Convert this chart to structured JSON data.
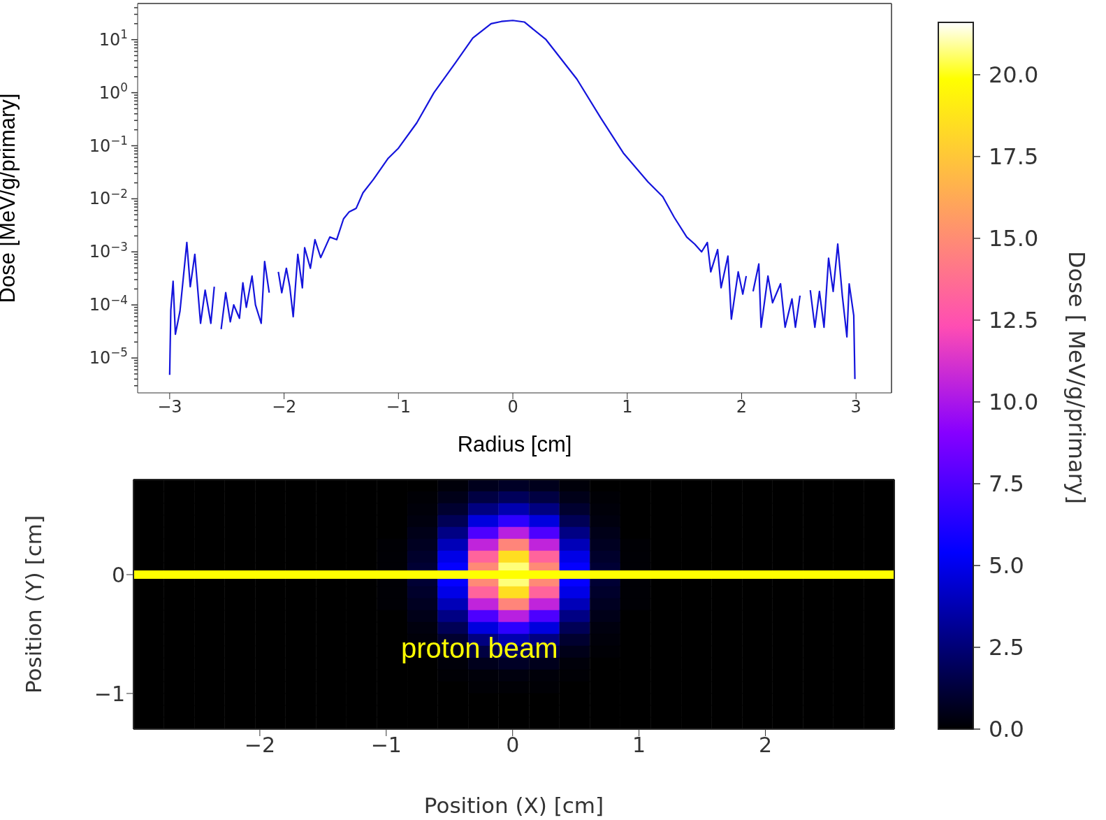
{
  "chart_data": [
    {
      "type": "line",
      "xlabel": "Radius [cm]",
      "ylabel": "Dose [MeV/g/primary]",
      "log": "y",
      "color": "#1414dc",
      "x": [
        -3.0,
        -2.99,
        -2.97,
        -2.95,
        -2.91,
        -2.85,
        -2.82,
        -2.78,
        -2.73,
        -2.69,
        -2.64,
        -2.61,
        -2.58,
        -2.55,
        -2.51,
        -2.47,
        -2.44,
        -2.39,
        -2.36,
        -2.33,
        -2.28,
        -2.25,
        -2.2,
        -2.17,
        -2.13,
        -2.1,
        -2.05,
        -2.02,
        -1.98,
        -1.95,
        -1.92,
        -1.88,
        -1.84,
        -1.82,
        -1.77,
        -1.73,
        -1.68,
        -1.6,
        -1.54,
        -1.48,
        -1.43,
        -1.37,
        -1.31,
        -1.22,
        -1.09,
        -1.0,
        -0.84,
        -0.69,
        -0.5,
        -0.35,
        -0.19,
        -0.1,
        0,
        0.1,
        0.29,
        0.56,
        0.77,
        0.97,
        1.18,
        1.31,
        1.41,
        1.52,
        1.59,
        1.65,
        1.7,
        1.73,
        1.79,
        1.82,
        1.88,
        1.91,
        1.97,
        2.01,
        2.04,
        2.06,
        2.1,
        2.15,
        2.17,
        2.23,
        2.27,
        2.34,
        2.38,
        2.44,
        2.47,
        2.51,
        2.56,
        2.6,
        2.64,
        2.68,
        2.72,
        2.76,
        2.8,
        2.84,
        2.88,
        2.92,
        2.94,
        2.98,
        2.99
      ],
      "values": [
        4.8e-06,
        8e-05,
        0.00028,
        2.8e-05,
        7.6e-05,
        0.0015,
        0.00022,
        0.0009,
        4.5e-05,
        0.00019,
        4.5e-05,
        0.00022,
        null,
        3.5e-05,
        0.00017,
        4.8e-05,
        0.0001,
        5.6e-05,
        0.00026,
        9e-05,
        0.00035,
        0.0001,
        4.5e-05,
        0.00066,
        0.00017,
        null,
        0.00042,
        0.00017,
        0.00049,
        0.00022,
        6e-05,
        0.0009,
        0.00021,
        0.0012,
        0.00049,
        0.0017,
        0.00078,
        0.0019,
        0.0017,
        0.0042,
        0.0057,
        0.0066,
        0.013,
        0.023,
        0.058,
        0.09,
        0.27,
        1.0,
        3.7,
        10.7,
        20,
        22,
        23,
        21.5,
        10,
        1.8,
        0.33,
        0.071,
        0.021,
        0.011,
        0.0045,
        0.0019,
        0.0014,
        0.001,
        0.0015,
        0.00042,
        0.0011,
        0.00021,
        0.00083,
        5.4e-05,
        0.00042,
        0.00016,
        0.00035,
        null,
        0.00018,
        0.00059,
        3.8e-05,
        0.00035,
        0.00011,
        0.00025,
        3.8e-05,
        0.00013,
        3.8e-05,
        0.00015,
        null,
        0.00019,
        3.8e-05,
        0.00018,
        3.8e-05,
        0.00076,
        0.00018,
        0.0014,
        0.00015,
        2.5e-05,
        0.00025,
        6.3e-05,
        4e-06
      ],
      "xlim": [
        -3.28,
        3.31
      ],
      "xticks": [
        -3,
        -2,
        -1,
        0,
        1,
        2,
        3
      ],
      "ylim": [
        2.2e-06,
        48
      ],
      "yticks": [
        {
          "value": 10,
          "label": "10$^{1}$"
        },
        {
          "value": 1,
          "label": "10$^{0}$"
        },
        {
          "value": 0.1,
          "label": "10$^{−1}$"
        },
        {
          "value": 0.01,
          "label": "10$^{−2}$"
        },
        {
          "value": 0.001,
          "label": "10$^{−3}$"
        },
        {
          "value": 0.0001,
          "label": "10$^{−4}$"
        },
        {
          "value": 1e-05,
          "label": "10$^{−5}$"
        },
        {
          "value": 3e-06,
          "label": null
        },
        {
          "value": 4e-06,
          "label": null
        },
        {
          "value": 5e-06,
          "label": null
        },
        {
          "value": 6e-06,
          "label": null
        },
        {
          "value": 7e-06,
          "label": null
        },
        {
          "value": 8e-06,
          "label": null
        },
        {
          "value": 9e-06,
          "label": null
        },
        {
          "value": 2e-05,
          "label": null
        },
        {
          "value": 3e-05,
          "label": null
        },
        {
          "value": 4e-05,
          "label": null
        },
        {
          "value": 5e-05,
          "label": null
        },
        {
          "value": 6e-05,
          "label": null
        },
        {
          "value": 7e-05,
          "label": null
        },
        {
          "value": 8e-05,
          "label": null
        },
        {
          "value": 9e-05,
          "label": null
        },
        {
          "value": 0.0002,
          "label": null
        },
        {
          "value": 0.0003,
          "label": null
        },
        {
          "value": 0.0004,
          "label": null
        },
        {
          "value": 0.0005,
          "label": null
        },
        {
          "value": 0.0006,
          "label": null
        },
        {
          "value": 0.0007,
          "label": null
        },
        {
          "value": 0.0008,
          "label": null
        },
        {
          "value": 0.0009,
          "label": null
        },
        {
          "value": 0.002,
          "label": null
        },
        {
          "value": 0.003,
          "label": null
        },
        {
          "value": 0.004,
          "label": null
        },
        {
          "value": 0.005,
          "label": null
        },
        {
          "value": 0.006,
          "label": null
        },
        {
          "value": 0.007,
          "label": null
        },
        {
          "value": 0.008,
          "label": null
        },
        {
          "value": 0.009,
          "label": null
        },
        {
          "value": 0.02,
          "label": null
        },
        {
          "value": 0.03,
          "label": null
        },
        {
          "value": 0.04,
          "label": null
        },
        {
          "value": 0.05,
          "label": null
        },
        {
          "value": 0.06,
          "label": null
        },
        {
          "value": 0.07,
          "label": null
        },
        {
          "value": 0.08,
          "label": null
        },
        {
          "value": 0.09,
          "label": null
        },
        {
          "value": 0.2,
          "label": null
        },
        {
          "value": 0.3,
          "label": null
        },
        {
          "value": 0.4,
          "label": null
        },
        {
          "value": 0.5,
          "label": null
        },
        {
          "value": 0.6,
          "label": null
        },
        {
          "value": 0.7,
          "label": null
        },
        {
          "value": 0.8,
          "label": null
        },
        {
          "value": 0.9,
          "label": null
        },
        {
          "value": 2,
          "label": null
        },
        {
          "value": 3,
          "label": null
        },
        {
          "value": 4,
          "label": null
        },
        {
          "value": 5,
          "label": null
        },
        {
          "value": 6,
          "label": null
        },
        {
          "value": 7,
          "label": null
        },
        {
          "value": 8,
          "label": null
        },
        {
          "value": 9,
          "label": null
        },
        {
          "value": 20,
          "label": null
        },
        {
          "value": 30,
          "label": null
        },
        {
          "value": 40,
          "label": null
        }
      ]
    },
    {
      "type": "heatmap",
      "xlabel": "Position (X) [cm]",
      "ylabel": "Position (Y) [cm]",
      "clabel": "Dose [ MeV/g/primary]",
      "xlim": [
        -3.0,
        3.02
      ],
      "xticks": [
        -2,
        -1,
        0,
        1,
        2
      ],
      "ylim": [
        -1.3,
        0.8
      ],
      "yticks": [
        -1,
        0
      ],
      "clim": [
        0,
        21.6
      ],
      "cticks": [
        {
          "value": 0,
          "label": "0.0"
        },
        {
          "value": 2.5,
          "label": "2.5"
        },
        {
          "value": 5,
          "label": "5.0"
        },
        {
          "value": 7.5,
          "label": "7.5"
        },
        {
          "value": 10,
          "label": "10.0"
        },
        {
          "value": 12.5,
          "label": "12.5"
        },
        {
          "value": 15,
          "label": "15.0"
        },
        {
          "value": 17.5,
          "label": "17.5"
        },
        {
          "value": 20,
          "label": "20.0"
        }
      ],
      "ref_lines": [
        {
          "axis": "y",
          "value": 0,
          "color": "#ffff00"
        }
      ],
      "annotations": [
        "proton beam"
      ],
      "cells": [
        [
          0,
          0,
          0,
          0,
          0,
          0,
          0,
          0,
          0,
          0,
          0.2,
          0.6,
          0.8,
          0.6,
          0.2,
          0,
          0,
          0,
          0,
          0,
          0,
          0,
          0,
          0,
          0
        ],
        [
          0,
          0,
          0,
          0,
          0,
          0,
          0,
          0,
          0,
          0.1,
          0.5,
          1.4,
          1.9,
          1.4,
          0.5,
          0.1,
          0,
          0,
          0,
          0,
          0,
          0,
          0,
          0,
          0
        ],
        [
          0,
          0,
          0,
          0,
          0,
          0,
          0,
          0,
          0,
          0.2,
          1.0,
          2.7,
          3.7,
          2.7,
          1.0,
          0.2,
          0,
          0,
          0,
          0,
          0,
          0,
          0,
          0,
          0
        ],
        [
          0,
          0,
          0,
          0,
          0,
          0,
          0,
          0,
          0,
          0.3,
          1.8,
          4.7,
          6.6,
          4.7,
          1.8,
          0.3,
          0,
          0,
          0,
          0,
          0,
          0,
          0,
          0,
          0
        ],
        [
          0,
          0,
          0,
          0,
          0,
          0,
          0,
          0,
          0,
          0.5,
          2.8,
          7.5,
          10.4,
          7.5,
          2.8,
          0.5,
          0,
          0,
          0,
          0,
          0,
          0,
          0,
          0,
          0
        ],
        [
          0,
          0,
          0,
          0,
          0,
          0,
          0,
          0,
          0.1,
          0.7,
          3.9,
          10.6,
          14.7,
          10.6,
          3.9,
          0.7,
          0.1,
          0,
          0,
          0,
          0,
          0,
          0,
          0,
          0
        ],
        [
          0,
          0,
          0,
          0,
          0,
          0,
          0,
          0,
          0.1,
          0.9,
          4.9,
          13.3,
          18.5,
          13.3,
          4.9,
          0.9,
          0.1,
          0,
          0,
          0,
          0,
          0,
          0,
          0,
          0
        ],
        [
          0,
          0,
          0,
          0,
          0,
          0,
          0,
          0,
          0.1,
          1.1,
          5.5,
          14.9,
          20.7,
          14.9,
          5.5,
          1.1,
          0.1,
          0,
          0,
          0,
          0,
          0,
          0,
          0,
          0
        ],
        [
          0,
          0,
          0,
          0,
          0,
          0,
          0,
          0,
          0.1,
          1.1,
          5.5,
          14.9,
          20.7,
          14.9,
          5.5,
          1.1,
          0.1,
          0,
          0,
          0,
          0,
          0,
          0,
          0,
          0
        ],
        [
          0,
          0,
          0,
          0,
          0,
          0,
          0,
          0,
          0.1,
          0.9,
          4.9,
          13.3,
          18.5,
          13.3,
          4.9,
          0.9,
          0.1,
          0,
          0,
          0,
          0,
          0,
          0,
          0,
          0
        ],
        [
          0,
          0,
          0,
          0,
          0,
          0,
          0,
          0,
          0.1,
          0.7,
          3.9,
          10.6,
          14.7,
          10.6,
          3.9,
          0.7,
          0.1,
          0,
          0,
          0,
          0,
          0,
          0,
          0,
          0
        ],
        [
          0,
          0,
          0,
          0,
          0,
          0,
          0,
          0,
          0,
          0.5,
          2.8,
          7.5,
          10.4,
          7.5,
          2.8,
          0.5,
          0,
          0,
          0,
          0,
          0,
          0,
          0,
          0,
          0
        ],
        [
          0,
          0,
          0,
          0,
          0,
          0,
          0,
          0,
          0,
          0.3,
          1.8,
          4.7,
          6.6,
          4.7,
          1.8,
          0.3,
          0,
          0,
          0,
          0,
          0,
          0,
          0,
          0,
          0
        ],
        [
          0,
          0,
          0,
          0,
          0,
          0,
          0,
          0,
          0,
          0.2,
          1.0,
          2.7,
          3.7,
          2.7,
          1.0,
          0.2,
          0,
          0,
          0,
          0,
          0,
          0,
          0,
          0,
          0
        ],
        [
          0,
          0,
          0,
          0,
          0,
          0,
          0,
          0,
          0,
          0.1,
          0.5,
          1.4,
          1.9,
          1.4,
          0.5,
          0.1,
          0,
          0,
          0,
          0,
          0,
          0,
          0,
          0,
          0
        ],
        [
          0,
          0,
          0,
          0,
          0,
          0,
          0,
          0,
          0,
          0,
          0.2,
          0.6,
          0.8,
          0.6,
          0.2,
          0,
          0,
          0,
          0,
          0,
          0,
          0,
          0,
          0,
          0
        ],
        [
          0,
          0,
          0,
          0,
          0,
          0,
          0,
          0,
          0,
          0,
          0.1,
          0.2,
          0.3,
          0.2,
          0.1,
          0,
          0,
          0,
          0,
          0,
          0,
          0,
          0,
          0,
          0
        ],
        [
          0,
          0,
          0,
          0,
          0,
          0,
          0,
          0,
          0,
          0,
          0,
          0.1,
          0.1,
          0.1,
          0,
          0,
          0,
          0,
          0,
          0,
          0,
          0,
          0,
          0,
          0
        ],
        [
          0,
          0,
          0,
          0,
          0,
          0,
          0,
          0,
          0,
          0,
          0,
          0,
          0,
          0,
          0,
          0,
          0,
          0,
          0,
          0,
          0,
          0,
          0,
          0,
          0
        ],
        [
          0,
          0,
          0,
          0,
          0,
          0,
          0,
          0,
          0,
          0,
          0,
          0,
          0,
          0,
          0,
          0,
          0,
          0,
          0,
          0,
          0,
          0,
          0,
          0,
          0
        ],
        [
          0,
          0,
          0,
          0,
          0,
          0,
          0,
          0,
          0,
          0,
          0,
          0,
          0,
          0,
          0,
          0,
          0,
          0,
          0,
          0,
          0,
          0,
          0,
          0,
          0
        ]
      ]
    }
  ]
}
